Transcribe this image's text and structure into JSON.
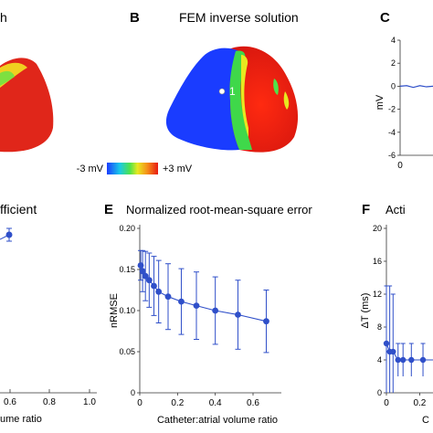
{
  "panels": {
    "a": {
      "title_fragment": "h"
    },
    "b": {
      "letter": "B",
      "title": "FEM inverse solution",
      "marker": "1"
    },
    "c": {
      "letter": "C",
      "ylabel": "mV",
      "yticks": [
        "4",
        "2",
        "0",
        "-2",
        "-4",
        "-6"
      ],
      "xtick0": "0"
    },
    "d": {
      "title_fragment": "fficient",
      "xlabel_fragment": "ume ratio",
      "xticks": [
        "0.6",
        "0.8",
        "1.0"
      ]
    },
    "e": {
      "letter": "E",
      "title": "Normalized root-mean-square error"
    },
    "f": {
      "letter": "F",
      "title_fragment": "Acti",
      "xtick_fragment": "C"
    }
  },
  "colorbar": {
    "min_label": "-3 mV",
    "max_label": "+3 mV",
    "colors": [
      "#1a3cff",
      "#19c9e8",
      "#4ee34a",
      "#e8e820",
      "#f58a18",
      "#e81a12"
    ]
  },
  "series_color": "#2f4fc9",
  "chart_data": [
    {
      "type": "line",
      "panel": "E",
      "title": "Normalized root-mean-square error",
      "xlabel": "Catheter:atrial volume ratio",
      "ylabel": "nRMSE",
      "xlim": [
        0,
        0.75
      ],
      "ylim": [
        0,
        0.2
      ],
      "xticks": [
        "0",
        "0.2",
        "0.4",
        "0.6"
      ],
      "yticks": [
        "0",
        "0.05",
        "0.10",
        "0.15",
        "0.20"
      ],
      "x": [
        0.005,
        0.015,
        0.03,
        0.05,
        0.075,
        0.1,
        0.15,
        0.22,
        0.3,
        0.4,
        0.52,
        0.67
      ],
      "y": [
        0.155,
        0.148,
        0.142,
        0.137,
        0.13,
        0.123,
        0.117,
        0.111,
        0.106,
        0.1,
        0.095,
        0.087
      ],
      "err": [
        0.018,
        0.025,
        0.03,
        0.033,
        0.036,
        0.038,
        0.04,
        0.04,
        0.041,
        0.041,
        0.042,
        0.038
      ]
    },
    {
      "type": "line",
      "panel": "F",
      "ylabel": "ΔT (ms)",
      "yticks": [
        "0",
        "4",
        "8",
        "12",
        "16",
        "20"
      ],
      "ylim": [
        0,
        20
      ],
      "xticks": [
        "0",
        "0.2"
      ],
      "x": [
        0,
        0.02,
        0.04,
        0.07,
        0.1,
        0.15,
        0.22,
        0.3,
        0.36
      ],
      "y": [
        6,
        5,
        5,
        4,
        4,
        4,
        4,
        4,
        4
      ],
      "err": [
        7,
        8,
        7,
        2,
        2,
        2,
        2,
        2,
        2
      ]
    },
    {
      "type": "line",
      "panel": "C",
      "ylim": [
        -6,
        4
      ],
      "x": [
        0,
        0.2,
        0.4,
        0.6,
        0.8,
        1.0
      ],
      "y": [
        0,
        0.05,
        -0.1,
        0.05,
        -0.05,
        0
      ]
    }
  ]
}
